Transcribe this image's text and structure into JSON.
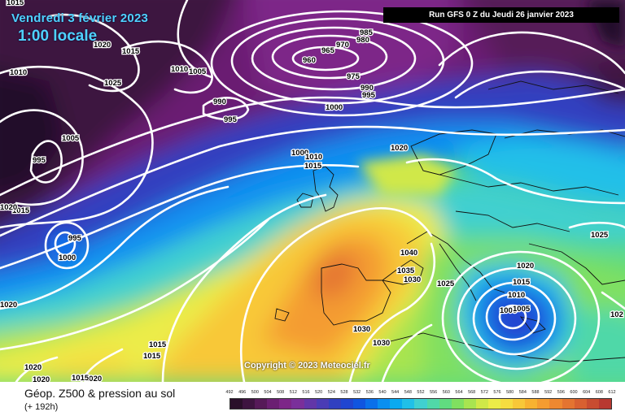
{
  "header": {
    "date_label": "Vendredi 3 février 2023",
    "time_label": "1:00 locale",
    "run_label": "Run GFS 0 Z du Jeudi 26 janvier 2023"
  },
  "map": {
    "copyright": "Copyright © 2023 Meteociel.fr",
    "pressure_labels": [
      "1015",
      "1020",
      "1015",
      "985",
      "980",
      "970",
      "960",
      "965",
      "975",
      "990",
      "995",
      "1010",
      "1025",
      "1010",
      "1005",
      "990",
      "995",
      "1000",
      "1005",
      "1000",
      "1010",
      "1015",
      "1020",
      "995",
      "1015",
      "1020",
      "995",
      "1000",
      "1020",
      "1040",
      "1035",
      "1030",
      "1025",
      "1020",
      "1015",
      "1010",
      "1005",
      "1005",
      "1025",
      "1030",
      "1030",
      "1015",
      "1015",
      "1020",
      "1020",
      "1015",
      "1020",
      "102"
    ]
  },
  "legend": {
    "title": "Géop. Z500 & pression au sol",
    "subtitle": "(+ 192h)",
    "scale_values": [
      "492",
      "496",
      "500",
      "504",
      "508",
      "512",
      "516",
      "520",
      "524",
      "528",
      "532",
      "536",
      "540",
      "544",
      "548",
      "552",
      "556",
      "560",
      "564",
      "568",
      "572",
      "576",
      "580",
      "584",
      "588",
      "592",
      "596",
      "600",
      "604",
      "608",
      "612"
    ],
    "scale_colors": [
      "#2a0f2a",
      "#3e1440",
      "#561a58",
      "#6b1f72",
      "#7d2688",
      "#7a2f9a",
      "#6236a8",
      "#4a3cb5",
      "#3040c0",
      "#2045d0",
      "#1055e0",
      "#0a70ea",
      "#0a8ff0",
      "#0aaaf0",
      "#20c0e8",
      "#40d0d0",
      "#50d8a8",
      "#60dc80",
      "#80e060",
      "#a8e450",
      "#d0e848",
      "#ecec48",
      "#f6dc40",
      "#f8c838",
      "#f8b230",
      "#f49c30",
      "#ee8830",
      "#e47430",
      "#d86030",
      "#c84c30",
      "#b83830"
    ]
  }
}
